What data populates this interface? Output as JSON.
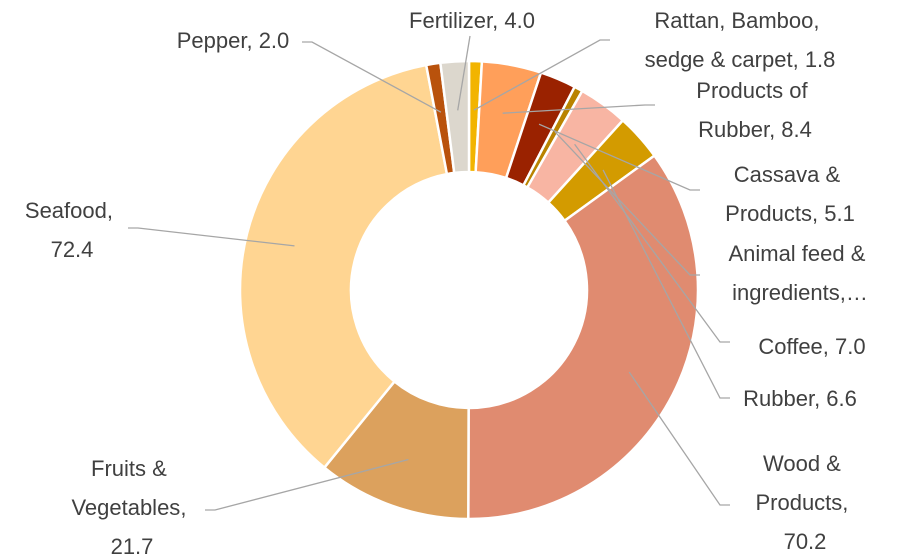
{
  "chart_data": {
    "type": "donut",
    "categories": [
      "Rattan, Bamboo, sedge & carpet",
      "Products of Rubber",
      "Cassava & Products",
      "Animal feed & ingredients,…",
      "Coffee",
      "Rubber",
      "Wood & Products",
      "Fruits & Vegetables",
      "Seafood",
      "Pepper",
      "Fertilizer"
    ],
    "values": [
      1.8,
      8.4,
      5.1,
      1.2,
      7.0,
      6.6,
      70.2,
      21.7,
      72.4,
      2.0,
      4.0
    ],
    "value_labels": [
      "1.8",
      "8.4",
      "5.1",
      null,
      "7.0",
      "6.6",
      "70.2",
      "21.7",
      "72.4",
      "2.0",
      "4.0"
    ],
    "label_separator": ",  ",
    "colors": [
      "#f2b400",
      "#ff9f5a",
      "#9a2200",
      "#b98300",
      "#f8b5a3",
      "#d39b00",
      "#e08b70",
      "#dca15d",
      "#ffd592",
      "#b9520c",
      "#dcd7cd"
    ]
  }
}
